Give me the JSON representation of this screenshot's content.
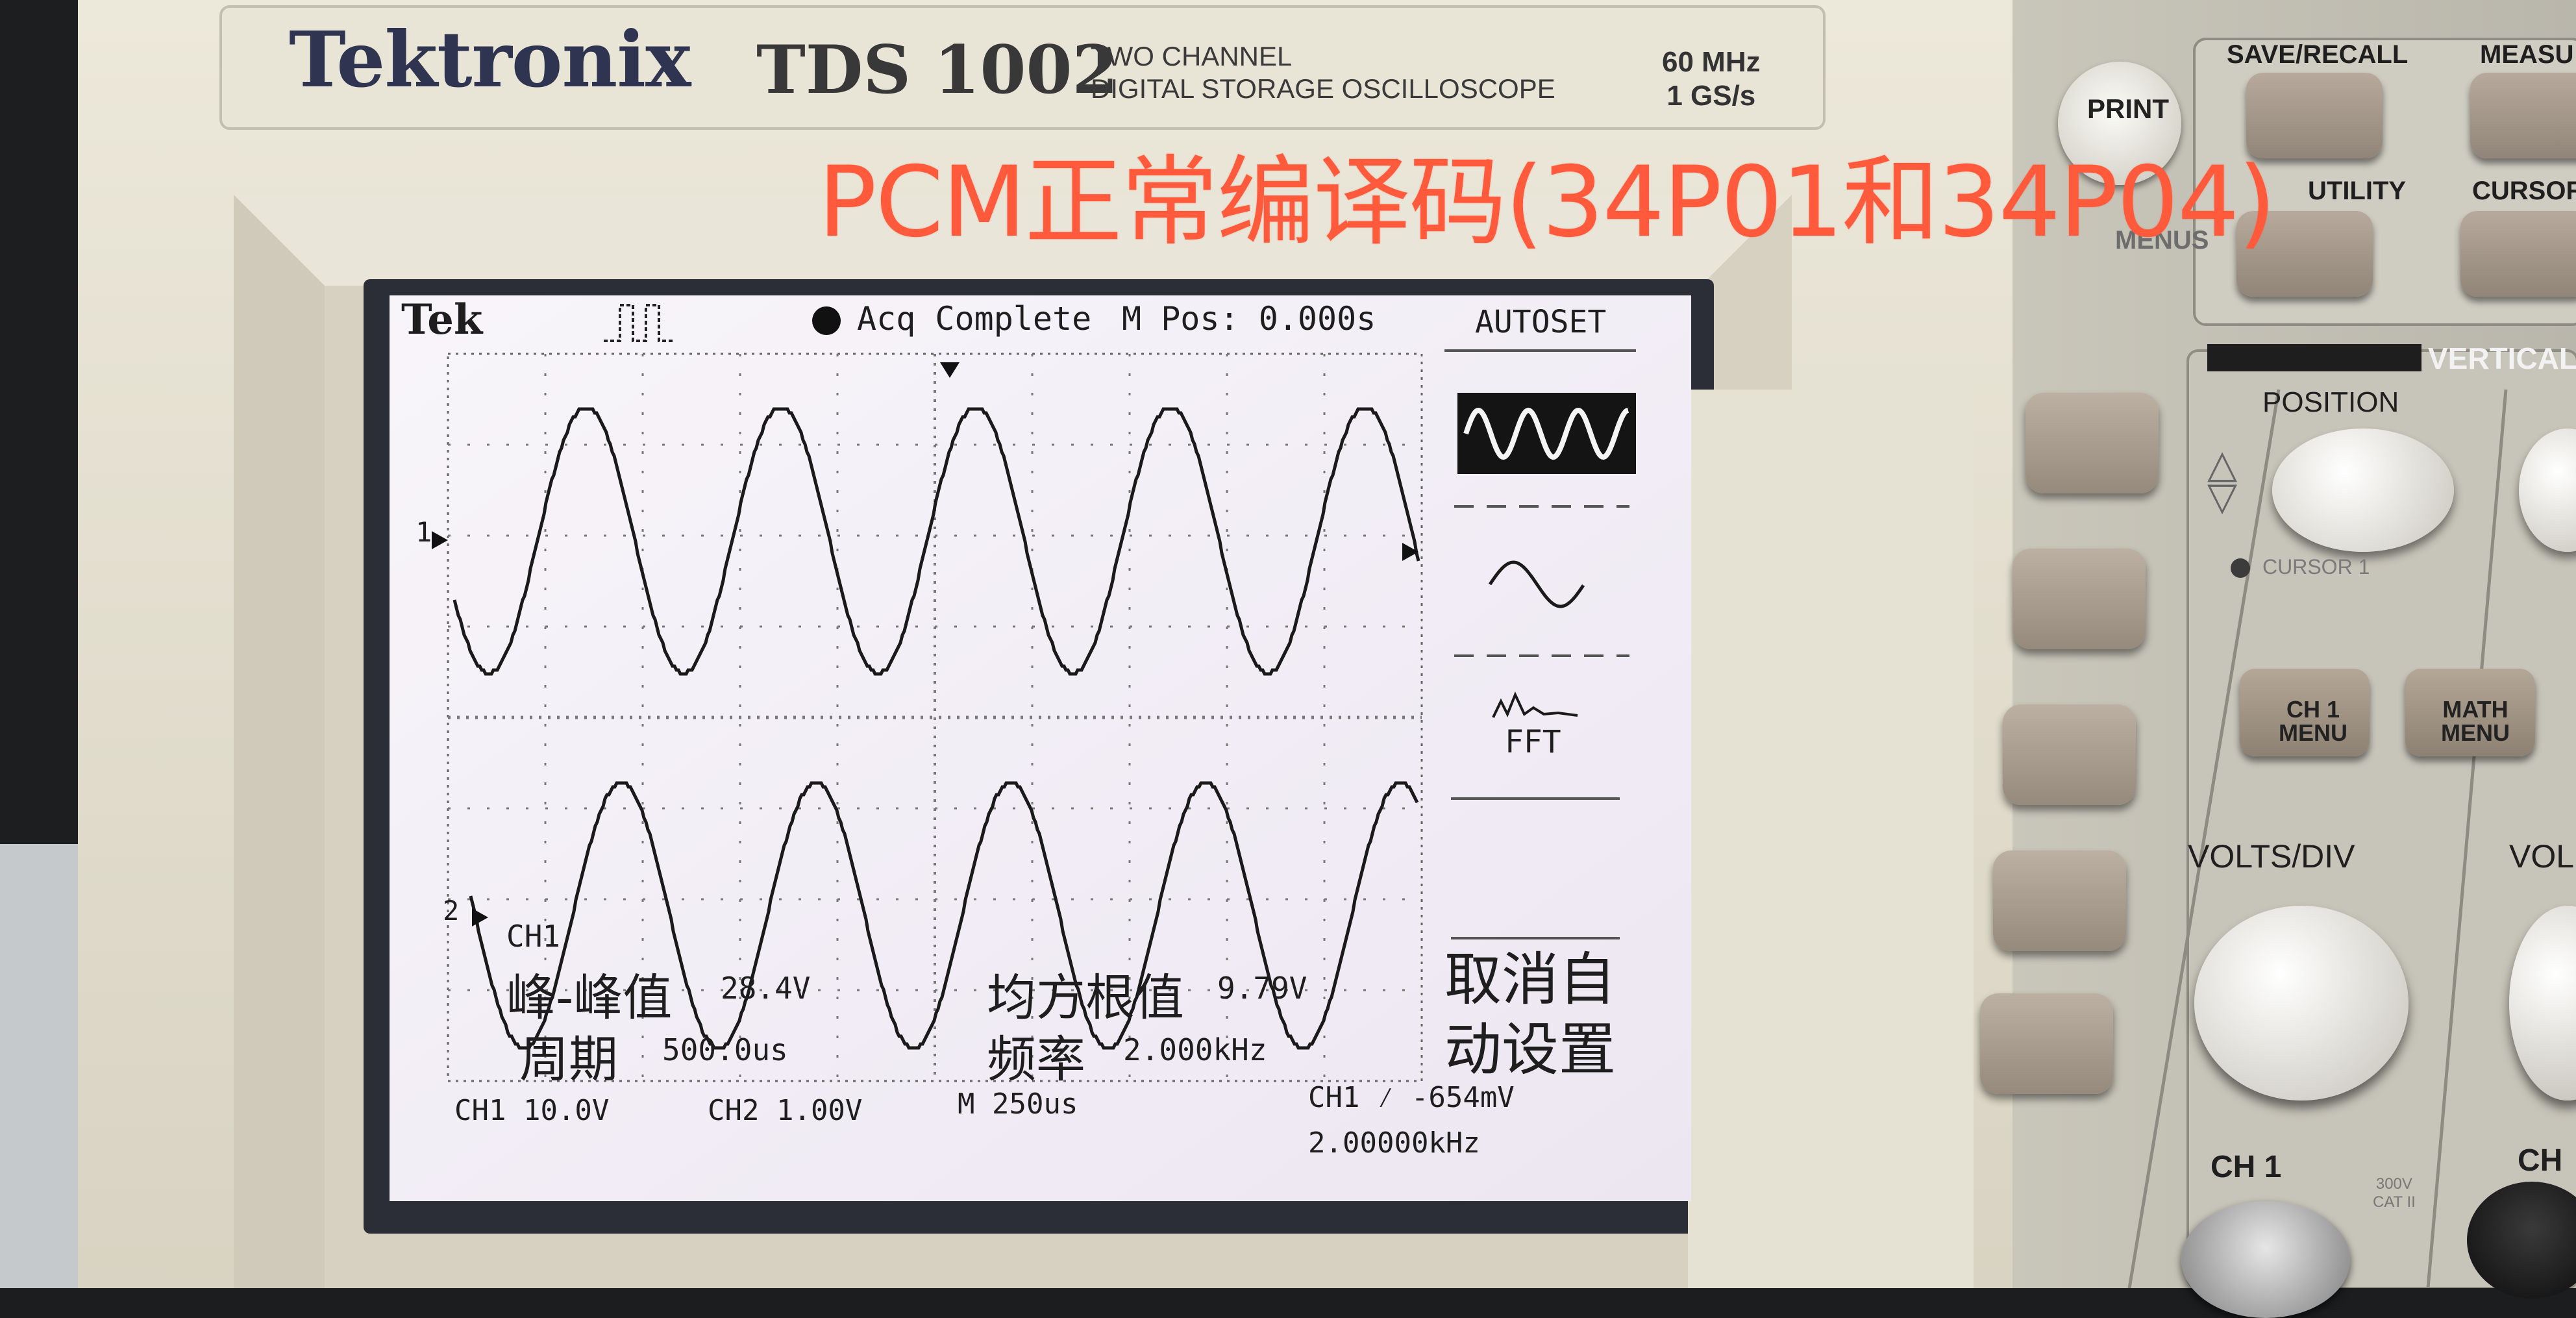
{
  "caption": "PCM正常编译码(34P01和34P04)",
  "scope": {
    "brand": "Tektronix",
    "model": "TDS 1002",
    "model_desc": [
      "TWO CHANNEL",
      "DIGITAL STORAGE OSCILLOSCOPE"
    ],
    "specs": [
      "60 MHz",
      "1 GS/s"
    ],
    "panel": {
      "print": "PRINT",
      "save_recall": "SAVE/RECALL",
      "measure": "MEASU",
      "utility": "UTILITY",
      "cursor": "CURSOR",
      "menus": "MENUS",
      "vertical": "VERTICAL",
      "position": "POSITION",
      "cursor1": "CURSOR 1",
      "ch1_menu": [
        "CH 1",
        "MENU"
      ],
      "math_menu": [
        "MATH",
        "MENU"
      ],
      "volts_div": "VOLTS/DIV",
      "volts_div_2": "VOL",
      "ch1": "CH 1",
      "ch2": "CH",
      "cat_rating": [
        "300V",
        "CAT II"
      ]
    }
  },
  "screen": {
    "tek": "Tek",
    "status": "Acq Complete",
    "mpos": "M Pos: 0.000s",
    "menu_title": "AUTOSET",
    "fft": "FFT",
    "undo_autoset": [
      "取消自",
      "动设置"
    ],
    "ch1_marker": "1",
    "ch2_marker": "2",
    "measurements": {
      "channel": "CH1",
      "vpp_label": "峰-峰值",
      "vpp_value": "28.4V",
      "rms_label": "均方根值",
      "rms_value": "9.79V",
      "period_label": "周期",
      "period_value": "500.0us",
      "freq_label": "频率",
      "freq_value": "2.000kHz"
    },
    "footer": {
      "ch1_scale": "CH1  10.0V",
      "ch2_scale": "CH2  1.00V",
      "time_scale": "M 250us",
      "trigger": "CH1 ⁄ -654mV",
      "trig_freq": "2.00000kHz"
    }
  },
  "chart_data": {
    "type": "line",
    "series": [
      {
        "channel": "CH1",
        "waveform": "sine",
        "frequency_khz": 2.0,
        "vpp_v": 28.4,
        "vrms_v": 9.79,
        "period_us": 500.0
      },
      {
        "channel": "CH2",
        "waveform": "sine",
        "frequency_khz": 2.0
      }
    ],
    "time_per_div_us": 250,
    "horizontal_divisions": 10,
    "cycles_shown": 5
  },
  "colors": {
    "caption": "#ff5a3c",
    "bezel": "#e6e2d3",
    "screen_bg": "#f4f0f6",
    "trace": "#1a1a1a"
  }
}
